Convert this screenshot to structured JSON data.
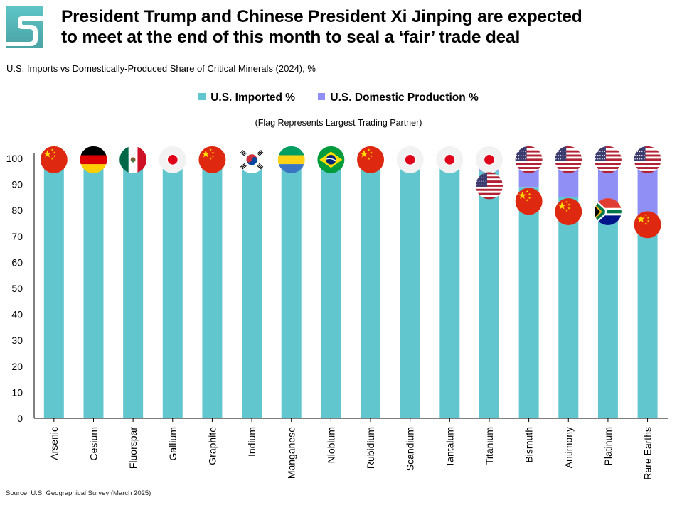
{
  "header": {
    "title_line1": "President Trump and Chinese President Xi Jinping are expected",
    "title_line2": "to meet at the end of this month to seal a ‘fair’ trade deal",
    "subtitle": "U.S. Imports vs Domestically-Produced Share of Critical Minerals (2024), %",
    "flag_note": "(Flag Represents Largest Trading Partner)"
  },
  "logo": {
    "icon": "stylized-s-logo",
    "color_top": "#5ec5c6",
    "color_bottom": "#4aa6a8"
  },
  "legend": {
    "imported_label": "U.S. Imported %",
    "domestic_label": "U.S. Domestic Production %"
  },
  "colors": {
    "imported": "#62c6cf",
    "domestic": "#8f8ff5"
  },
  "source": "Source: U.S. Geographical Survey (March 2025)",
  "chart_data": {
    "type": "bar",
    "stacked": true,
    "title": "U.S. Imports vs Domestically-Produced Share of Critical Minerals (2024), %",
    "categories": [
      "Arsenic",
      "Cesium",
      "Fluorspar",
      "Gallium",
      "Graphite",
      "Indium",
      "Manganese",
      "Niobium",
      "Rubidium",
      "Scandium",
      "Tantalum",
      "Titanium",
      "Bismuth",
      "Antimony",
      "Platinum",
      "Rare Earths"
    ],
    "series": [
      {
        "name": "U.S. Imported %",
        "values": [
          100,
          100,
          100,
          100,
          100,
          100,
          100,
          100,
          100,
          100,
          100,
          95,
          89,
          85,
          80,
          75
        ]
      },
      {
        "name": "U.S. Domestic Production %",
        "values": [
          0,
          0,
          0,
          0,
          0,
          0,
          0,
          0,
          0,
          0,
          0,
          5,
          11,
          15,
          20,
          25
        ]
      }
    ],
    "ylim": [
      0,
      100
    ],
    "yticks": [
      0,
      10,
      20,
      30,
      40,
      50,
      60,
      70,
      80,
      90,
      100
    ],
    "xlabel": "",
    "ylabel": "",
    "largest_partner_flags": [
      {
        "mineral": "Arsenic",
        "flags": [
          {
            "country": "China",
            "value": 99.5
          }
        ]
      },
      {
        "mineral": "Cesium",
        "flags": [
          {
            "country": "Germany",
            "value": 99.5
          }
        ]
      },
      {
        "mineral": "Fluorspar",
        "flags": [
          {
            "country": "Mexico",
            "value": 99.5
          }
        ]
      },
      {
        "mineral": "Gallium",
        "flags": [
          {
            "country": "Japan",
            "value": 99.5
          }
        ]
      },
      {
        "mineral": "Graphite",
        "flags": [
          {
            "country": "China",
            "value": 99.5
          }
        ]
      },
      {
        "mineral": "Indium",
        "flags": [
          {
            "country": "South Korea",
            "value": 99.5
          }
        ]
      },
      {
        "mineral": "Manganese",
        "flags": [
          {
            "country": "Gabon",
            "value": 99.5
          }
        ]
      },
      {
        "mineral": "Niobium",
        "flags": [
          {
            "country": "Brazil",
            "value": 99.5
          }
        ]
      },
      {
        "mineral": "Rubidium",
        "flags": [
          {
            "country": "China",
            "value": 99.5
          }
        ]
      },
      {
        "mineral": "Scandium",
        "flags": [
          {
            "country": "Japan",
            "value": 99.5
          }
        ]
      },
      {
        "mineral": "Tantalum",
        "flags": [
          {
            "country": "Japan",
            "value": 99.5
          }
        ]
      },
      {
        "mineral": "Titanium",
        "flags": [
          {
            "country": "Japan",
            "value": 99.5
          },
          {
            "country": "United States",
            "value": 89.5
          }
        ]
      },
      {
        "mineral": "Bismuth",
        "flags": [
          {
            "country": "United States",
            "value": 99.5
          },
          {
            "country": "China",
            "value": 83.5
          }
        ]
      },
      {
        "mineral": "Antimony",
        "flags": [
          {
            "country": "United States",
            "value": 99.5
          },
          {
            "country": "China",
            "value": 79.5
          }
        ]
      },
      {
        "mineral": "Platinum",
        "flags": [
          {
            "country": "United States",
            "value": 99.5
          },
          {
            "country": "South Africa",
            "value": 79.5
          }
        ]
      },
      {
        "mineral": "Rare Earths",
        "flags": [
          {
            "country": "United States",
            "value": 99.5
          },
          {
            "country": "China",
            "value": 74.5
          }
        ]
      }
    ]
  }
}
